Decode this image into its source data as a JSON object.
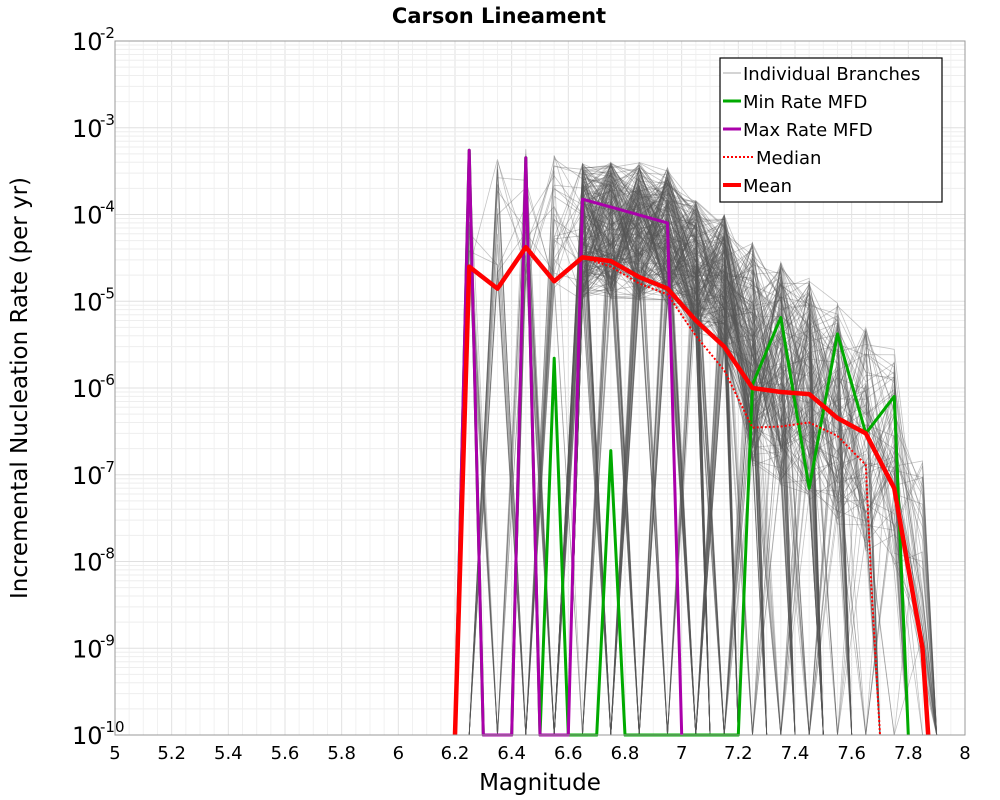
{
  "chart_data": {
    "type": "line",
    "title": "Carson Lineament",
    "xlabel": "Magnitude",
    "ylabel": "Incremental Nucleation Rate (per yr)",
    "xlim": [
      5,
      8
    ],
    "ylim": [
      1e-10,
      0.01
    ],
    "yscale": "log",
    "grid": true,
    "legend_position": "top-right",
    "x_ticks": [
      "5",
      "5.2",
      "5.4",
      "5.6",
      "5.8",
      "6",
      "6.2",
      "6.4",
      "6.6",
      "6.8",
      "7",
      "7.2",
      "7.4",
      "7.6",
      "7.8",
      "8"
    ],
    "y_ticks": [
      {
        "base": "10",
        "exp": "-10"
      },
      {
        "base": "10",
        "exp": "-9"
      },
      {
        "base": "10",
        "exp": "-8"
      },
      {
        "base": "10",
        "exp": "-7"
      },
      {
        "base": "10",
        "exp": "-6"
      },
      {
        "base": "10",
        "exp": "-5"
      },
      {
        "base": "10",
        "exp": "-4"
      },
      {
        "base": "10",
        "exp": "-3"
      },
      {
        "base": "10",
        "exp": "-2"
      }
    ],
    "series": [
      {
        "name": "Individual Branches",
        "color": "#555555",
        "style": "thin",
        "branch_count": 300,
        "envelope_x": [
          6.25,
          6.35,
          6.45,
          6.55,
          6.65,
          6.75,
          6.85,
          6.95,
          7.05,
          7.15,
          7.25,
          7.35,
          7.45,
          7.55,
          7.65,
          7.75,
          7.85
        ],
        "envelope_upper": [
          0.0005,
          0.0005,
          0.0006,
          0.0005,
          0.0004,
          0.0004,
          0.0004,
          0.00035,
          0.00015,
          0.0001,
          5e-05,
          3e-05,
          2e-05,
          1e-05,
          5e-06,
          3e-06,
          1.5e-07
        ]
      },
      {
        "name": "Min Rate MFD",
        "color": "#00aa00",
        "style": "solid",
        "x": [
          6.2,
          6.25,
          6.3,
          6.35,
          6.4,
          6.45,
          6.5,
          6.55,
          6.6,
          6.65,
          6.7,
          6.75,
          6.8,
          6.85,
          6.9,
          6.95,
          7.0,
          7.05,
          7.1,
          7.15,
          7.2,
          7.25,
          7.35,
          7.45,
          7.55,
          7.65,
          7.75,
          7.8
        ],
        "values": [
          1e-10,
          0.00055,
          1e-10,
          1e-10,
          1e-10,
          0.00045,
          1e-10,
          2.2e-06,
          1e-10,
          1e-10,
          1e-10,
          1.9e-07,
          1e-10,
          1e-10,
          1e-10,
          1e-10,
          1e-10,
          1e-10,
          1e-10,
          1e-10,
          1e-10,
          1.1e-06,
          6.5e-06,
          7e-08,
          4.2e-06,
          3e-07,
          8e-07,
          1e-10
        ]
      },
      {
        "name": "Max Rate MFD",
        "color": "#aa00aa",
        "style": "solid",
        "x": [
          6.2,
          6.25,
          6.3,
          6.4,
          6.45,
          6.5,
          6.6,
          6.65,
          6.95,
          7.0
        ],
        "values": [
          1e-10,
          0.00055,
          1e-10,
          1e-10,
          0.00045,
          1e-10,
          1e-10,
          0.00015,
          8e-05,
          1e-10
        ]
      },
      {
        "name": "Median",
        "color": "#ff0000",
        "style": "dotted",
        "x": [
          6.2,
          6.25,
          6.35,
          6.45,
          6.55,
          6.65,
          6.75,
          6.85,
          6.95,
          7.05,
          7.15,
          7.25,
          7.35,
          7.45,
          7.55,
          7.65,
          7.67,
          7.7
        ],
        "values": [
          1e-10,
          2.5e-05,
          1.4e-05,
          4.2e-05,
          1.7e-05,
          3.2e-05,
          2.5e-05,
          1.6e-05,
          1.2e-05,
          4e-06,
          1.6e-06,
          3.5e-07,
          3.6e-07,
          4e-07,
          2.8e-07,
          1.3e-07,
          5e-09,
          1e-10
        ]
      },
      {
        "name": "Mean",
        "color": "#ff0000",
        "style": "thick",
        "x": [
          6.2,
          6.25,
          6.35,
          6.45,
          6.55,
          6.65,
          6.75,
          6.85,
          6.95,
          7.05,
          7.15,
          7.25,
          7.35,
          7.45,
          7.55,
          7.65,
          7.75,
          7.85,
          7.87
        ],
        "values": [
          1e-10,
          2.5e-05,
          1.4e-05,
          4.2e-05,
          1.7e-05,
          3.2e-05,
          2.9e-05,
          1.9e-05,
          1.4e-05,
          6e-06,
          3e-06,
          1e-06,
          9e-07,
          8.5e-07,
          4.5e-07,
          3e-07,
          7e-08,
          1e-09,
          1e-10
        ]
      }
    ]
  }
}
